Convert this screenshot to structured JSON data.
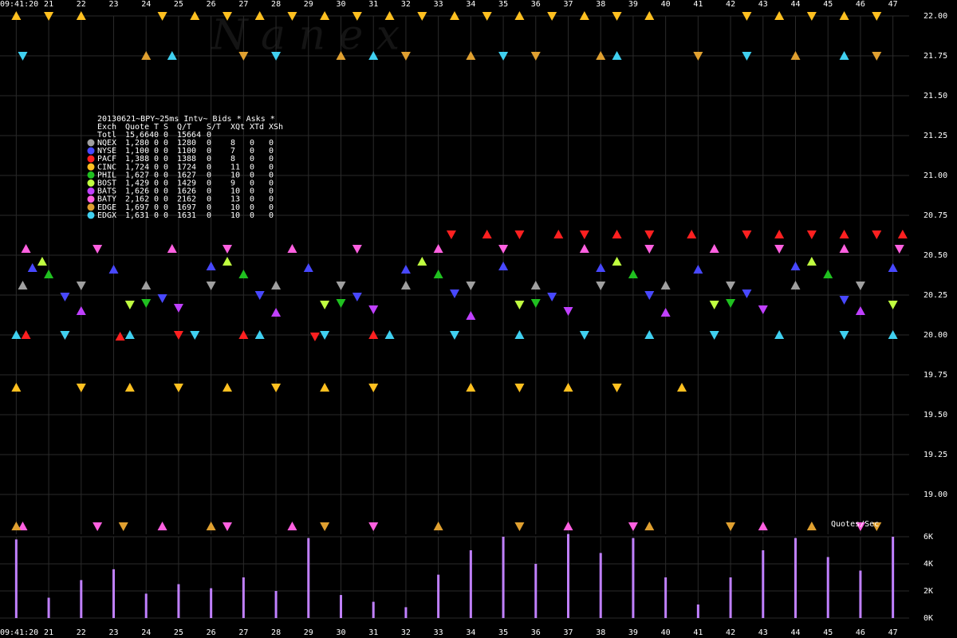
{
  "chart_data": [
    {
      "type": "scatter",
      "title": "20130621~BPY~25ms Intv~ Bids * Asks *",
      "watermark": "N a n e x",
      "xlim": [
        19.5,
        47.5
      ],
      "xticks": [
        {
          "value": 20,
          "label": "09:41:20"
        },
        21,
        22,
        23,
        24,
        25,
        26,
        27,
        28,
        29,
        30,
        31,
        32,
        33,
        34,
        35,
        36,
        37,
        38,
        39,
        40,
        41,
        42,
        43,
        44,
        45,
        46,
        47
      ],
      "ylim": [
        18.75,
        22.0
      ],
      "yticks": [
        {
          "value": 19.0,
          "label": "19.00"
        },
        {
          "value": 19.25,
          "label": "19.25"
        },
        {
          "value": 19.5,
          "label": "19.50"
        },
        {
          "value": 19.75,
          "label": "19.75"
        },
        {
          "value": 20.0,
          "label": "20.00"
        },
        {
          "value": 20.25,
          "label": "20.25"
        },
        {
          "value": 20.5,
          "label": "20.50"
        },
        {
          "value": 20.75,
          "label": "20.75"
        },
        {
          "value": 21.0,
          "label": "21.00"
        },
        {
          "value": 21.25,
          "label": "21.25"
        },
        {
          "value": 21.5,
          "label": "21.50"
        },
        {
          "value": 21.75,
          "label": "21.75"
        },
        {
          "value": 22.0,
          "label": "22.00"
        }
      ],
      "grid": true,
      "stats": {
        "header": [
          "Exch",
          "Quote",
          "T",
          "S",
          "Q/T",
          "S/T",
          "XQt",
          "XTd",
          "XSh"
        ],
        "total": [
          "Totl",
          "15,664",
          "0",
          "0",
          "15664",
          "0"
        ],
        "rows": [
          [
            "1,280",
            "0",
            "0",
            "1280",
            "0",
            "8",
            "0",
            "0"
          ],
          [
            "1,100",
            "0",
            "0",
            "1100",
            "0",
            "7",
            "0",
            "0"
          ],
          [
            "1,388",
            "0",
            "0",
            "1388",
            "0",
            "8",
            "0",
            "0"
          ],
          [
            "1,724",
            "0",
            "0",
            "1724",
            "0",
            "11",
            "0",
            "0"
          ],
          [
            "1,627",
            "0",
            "0",
            "1627",
            "0",
            "10",
            "0",
            "0"
          ],
          [
            "1,429",
            "0",
            "0",
            "1429",
            "0",
            "9",
            "0",
            "0"
          ],
          [
            "1,626",
            "0",
            "0",
            "1626",
            "0",
            "10",
            "0",
            "0"
          ],
          [
            "2,162",
            "0",
            "0",
            "2162",
            "0",
            "13",
            "0",
            "0"
          ],
          [
            "1,697",
            "0",
            "0",
            "1697",
            "0",
            "10",
            "0",
            "0"
          ],
          [
            "1,631",
            "0",
            "0",
            "1631",
            "0",
            "10",
            "0",
            "0"
          ]
        ]
      },
      "series": [
        {
          "name": "NQEX",
          "color": "#a0a0a0",
          "x": [
            20.2,
            22,
            24,
            26,
            28,
            30,
            32,
            34,
            36,
            38,
            40,
            42,
            44,
            46
          ],
          "values": [
            20.31,
            20.31,
            20.31,
            20.31,
            20.31,
            20.31,
            20.31,
            20.31,
            20.31,
            20.31,
            20.31,
            20.31,
            20.31,
            20.31
          ]
        },
        {
          "name": "NYSE",
          "color": "#4848ff",
          "x": [
            20.5,
            21.5,
            23,
            24.5,
            26,
            27.5,
            29,
            30.5,
            32,
            33.5,
            35,
            36.5,
            38,
            39.5,
            41,
            42.5,
            44,
            45.5,
            47
          ],
          "values": [
            20.42,
            20.24,
            20.41,
            20.23,
            20.43,
            20.25,
            20.42,
            20.24,
            20.41,
            20.26,
            20.43,
            20.24,
            20.42,
            20.25,
            20.41,
            20.26,
            20.43,
            20.22,
            20.42
          ]
        },
        {
          "name": "PACF",
          "color": "#ff2020",
          "x": [
            20.3,
            21.5,
            23.2,
            25,
            27,
            29.2,
            31,
            33.4,
            34.5,
            35.5,
            36.7,
            37.5,
            38.5,
            39.5,
            40.8,
            42.5,
            43.5,
            44.5,
            45.5,
            46.5,
            47.3
          ],
          "values": [
            20.0,
            20.0,
            19.99,
            20.0,
            20.0,
            19.99,
            20.0,
            20.63,
            20.63,
            20.63,
            20.63,
            20.63,
            20.63,
            20.63,
            20.63,
            20.63,
            20.63,
            20.63,
            20.63,
            20.63,
            20.63
          ]
        },
        {
          "name": "CINC",
          "color": "#ffc020",
          "x": [
            20,
            21,
            22,
            24.5,
            25.5,
            26.5,
            27.5,
            28.5,
            29.5,
            30.5,
            31.5,
            32.5,
            33.5,
            34.5,
            35.5,
            36.5,
            37.5,
            38.5,
            39.5,
            42.5,
            43.5,
            44.5,
            45.5,
            46.5,
            20,
            22,
            23.5,
            25,
            26.5,
            28,
            29.5,
            31,
            34,
            35.5,
            37,
            38.5,
            40.5
          ],
          "values": [
            22.0,
            22.0,
            22.0,
            22.0,
            22.0,
            22.0,
            22.0,
            22.0,
            22.0,
            22.0,
            22.0,
            22.0,
            22.0,
            22.0,
            22.0,
            22.0,
            22.0,
            22.0,
            22.0,
            22.0,
            22.0,
            22.0,
            22.0,
            22.0,
            19.67,
            19.67,
            19.67,
            19.67,
            19.67,
            19.67,
            19.67,
            19.67,
            19.67,
            19.67,
            19.67,
            19.67,
            19.67
          ]
        },
        {
          "name": "PHIL",
          "color": "#20c020",
          "x": [
            21,
            24,
            27,
            30,
            33,
            36,
            39,
            42,
            45
          ],
          "values": [
            20.38,
            20.2,
            20.38,
            20.2,
            20.38,
            20.2,
            20.38,
            20.2,
            20.38
          ]
        },
        {
          "name": "BOST",
          "color": "#c0ff40",
          "x": [
            20.8,
            23.5,
            26.5,
            29.5,
            32.5,
            35.5,
            38.5,
            41.5,
            44.5,
            47
          ],
          "values": [
            20.46,
            20.19,
            20.46,
            20.19,
            20.46,
            20.19,
            20.46,
            20.19,
            20.46,
            20.19
          ]
        },
        {
          "name": "BATS",
          "color": "#c040ff",
          "x": [
            22,
            25,
            28,
            31,
            34,
            37,
            40,
            43,
            46
          ],
          "values": [
            20.15,
            20.17,
            20.14,
            20.16,
            20.12,
            20.15,
            20.14,
            20.16,
            20.15
          ]
        },
        {
          "name": "BATY",
          "color": "#ff60e0",
          "x": [
            20.3,
            22.5,
            24.8,
            26.5,
            28.5,
            30.5,
            33,
            35,
            37.5,
            39.5,
            41.5,
            43.5,
            45.5,
            47.2,
            20.2,
            22.5,
            24.5,
            26.5,
            28.5,
            31,
            37,
            39,
            43,
            46
          ],
          "values": [
            20.54,
            20.54,
            20.54,
            20.54,
            20.54,
            20.54,
            20.54,
            20.54,
            20.54,
            20.54,
            20.54,
            20.54,
            20.54,
            20.54,
            18.8,
            18.8,
            18.8,
            18.8,
            18.8,
            18.8,
            18.8,
            18.8,
            18.8,
            18.8
          ]
        },
        {
          "name": "EDGE",
          "color": "#e0a030",
          "x": [
            24,
            27,
            30,
            32,
            34,
            36,
            38,
            41,
            44,
            46.5,
            20,
            23.3,
            26,
            29.5,
            33,
            35.5,
            39.5,
            42,
            44.5,
            46.5
          ],
          "values": [
            21.75,
            21.75,
            21.75,
            21.75,
            21.75,
            21.75,
            21.75,
            21.75,
            21.75,
            21.75,
            18.8,
            18.8,
            18.8,
            18.8,
            18.8,
            18.8,
            18.8,
            18.8,
            18.8,
            18.8
          ]
        },
        {
          "name": "EDGX",
          "color": "#40d0f0",
          "x": [
            20,
            21.5,
            23.5,
            25.5,
            27.5,
            29.5,
            31.5,
            33.5,
            35.5,
            37.5,
            39.5,
            41.5,
            43.5,
            45.5,
            47,
            20.2,
            24.8,
            28,
            31,
            35,
            38.5,
            42.5,
            45.5
          ],
          "values": [
            20.0,
            20.0,
            20.0,
            20.0,
            20.0,
            20.0,
            20.0,
            20.0,
            20.0,
            20.0,
            20.0,
            20.0,
            20.0,
            20.0,
            20.0,
            21.75,
            21.75,
            21.75,
            21.75,
            21.75,
            21.75,
            21.75,
            21.75
          ]
        }
      ]
    },
    {
      "type": "bar",
      "title": "Quotes/Sec",
      "color": "#c080ff",
      "xlim": [
        19.5,
        47.5
      ],
      "x": [
        20,
        21,
        22,
        23,
        24,
        25,
        26,
        27,
        28,
        29,
        30,
        31,
        32,
        33,
        34,
        35,
        36,
        37,
        38,
        39,
        40,
        41,
        42,
        43,
        44,
        45,
        46,
        47
      ],
      "values": [
        5800,
        1500,
        2800,
        3600,
        1800,
        2500,
        2200,
        3000,
        2000,
        5900,
        1700,
        1200,
        800,
        3200,
        5000,
        6000,
        4000,
        6200,
        4800,
        5900,
        3000,
        1000,
        3000,
        5000,
        5900,
        4500,
        3500,
        6000
      ],
      "ylim": [
        0,
        6000
      ],
      "yticks": [
        {
          "value": 0,
          "label": "0K"
        },
        {
          "value": 2000,
          "label": "2K"
        },
        {
          "value": 4000,
          "label": "4K"
        },
        {
          "value": 6000,
          "label": "6K"
        }
      ],
      "grid": true
    }
  ]
}
